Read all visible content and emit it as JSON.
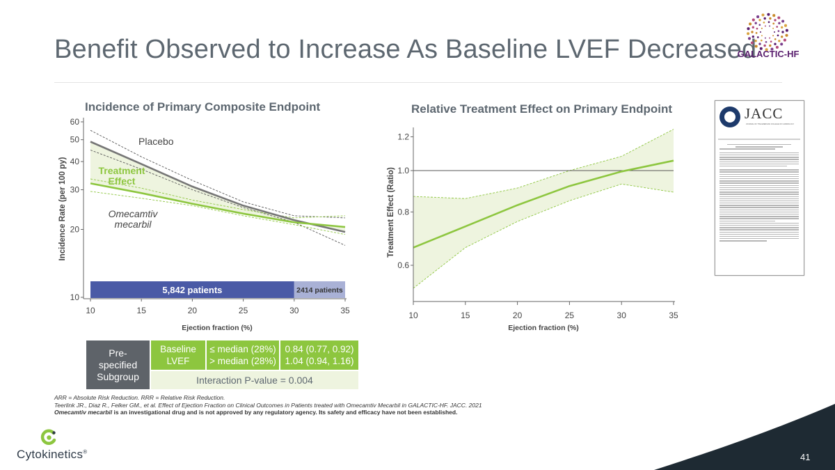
{
  "slide": {
    "title": "Benefit Observed to Increase As Baseline LVEF Decreased",
    "page_number": "41",
    "logo_text": "GALACTIC-HF",
    "company": "Cytokinetics",
    "company_mark": "®",
    "colors": {
      "title": "#5d6770",
      "green": "#8dc63f",
      "navy": "#4a5aa6",
      "gray_line": "#767676",
      "bar_light": "#a9b1d6",
      "dark_cell": "#5e6369",
      "band": "#eef4df"
    }
  },
  "left_chart": {
    "title": "Incidence of Primary Composite Endpoint",
    "ylabel": "Incidence Rate (per 100 py)",
    "xlabel": "Ejection fraction (%)",
    "yticks": [
      "60",
      "50",
      "40",
      "30",
      "20",
      "10"
    ],
    "xticks": [
      "10",
      "15",
      "20",
      "25",
      "30",
      "35"
    ],
    "label_placebo": "Placebo",
    "label_treatment_1": "Treatment",
    "label_treatment_2": "Effect",
    "label_omecamtiv_1": "Omecamtiv",
    "label_omecamtiv_2": "mecarbil",
    "bar_left": "5,842 patients",
    "bar_right": "2414 patients"
  },
  "right_chart": {
    "title": "Relative Treatment Effect on Primary Endpoint",
    "ylabel": "Treatment Effect (Ratio)",
    "xlabel": "Ejection fraction (%)",
    "yticks": [
      "1.2",
      "1.0",
      "0.8",
      "0.6"
    ],
    "xticks": [
      "10",
      "15",
      "20",
      "25",
      "30",
      "35"
    ]
  },
  "chart_data": [
    {
      "type": "line",
      "title": "Incidence of Primary Composite Endpoint",
      "xlabel": "Ejection fraction (%)",
      "ylabel": "Incidence Rate (per 100 py)",
      "y_scale": "log",
      "xlim": [
        10,
        35
      ],
      "ylim": [
        10,
        60
      ],
      "series": [
        {
          "name": "Placebo",
          "x": [
            10,
            15,
            20,
            25,
            30,
            35
          ],
          "y": [
            49,
            39,
            31,
            25.5,
            22,
            19.5
          ]
        },
        {
          "name": "Omecamtiv mecarbil",
          "x": [
            10,
            15,
            20,
            25,
            30,
            35
          ],
          "y": [
            32,
            29,
            26,
            23.5,
            21.5,
            20.5
          ]
        }
      ],
      "bands": [
        {
          "x": [
            10,
            15,
            20,
            25,
            30,
            35
          ],
          "lower": [
            45,
            37,
            30,
            25,
            21.5,
            17
          ],
          "upper": [
            55,
            42,
            33,
            26.5,
            23,
            22.5
          ]
        },
        {
          "x": [
            10,
            15,
            20,
            25,
            30,
            35
          ],
          "lower": [
            29.5,
            27.5,
            25.5,
            23,
            21,
            19
          ],
          "upper": [
            33.5,
            30.5,
            27,
            24.5,
            22.5,
            23
          ]
        }
      ],
      "bars": [
        {
          "label": "5,842 patients",
          "x0": 10,
          "x1": 30
        },
        {
          "label": "2414 patients",
          "x0": 30,
          "x1": 35
        }
      ]
    },
    {
      "type": "line",
      "title": "Relative Treatment Effect on Primary Endpoint",
      "xlabel": "Ejection fraction (%)",
      "ylabel": "Treatment Effect (Ratio)",
      "y_scale": "log",
      "xlim": [
        10,
        35
      ],
      "ylim": [
        0.5,
        1.25
      ],
      "reference_line": 1.0,
      "series": [
        {
          "name": "",
          "x": [
            10,
            15,
            20,
            25,
            30,
            35
          ],
          "y": [
            0.66,
            0.74,
            0.83,
            0.92,
            0.995,
            1.055
          ]
        }
      ],
      "bands": [
        {
          "x": [
            10,
            15,
            20,
            25,
            30,
            35
          ],
          "lower": [
            0.53,
            0.66,
            0.76,
            0.85,
            0.93,
            0.89
          ],
          "upper": [
            0.87,
            0.86,
            0.91,
            1.0,
            1.08,
            1.25
          ]
        }
      ]
    }
  ],
  "subgroup_table": {
    "header": "Pre-specified Subgroup",
    "row_label": "Baseline LVEF",
    "cond_1": "≤ median (28%)",
    "cond_2": "> median (28%)",
    "val_1": "0.84 (0.77, 0.92)",
    "val_2": "1.04 (0.94, 1.16)",
    "interaction": "Interaction P-value = 0.004"
  },
  "footnotes": {
    "line1": "ARR = Absolute Risk Reduction. RRR = Relative Risk Reduction.",
    "line2": "Teerlink JR., Diaz R., Felker GM., et al. Effect of Ejection Fraction on Clinical Outcomes in Patients treated with Omecamtiv Mecarbil in GALACTIC-HF. JACC. 2021",
    "line3_bold": "Omecamtiv mecarbil",
    "line3_rest": " is an investigational drug and is not approved by any regulatory agency. Its safety and efficacy have not been established."
  },
  "journal": {
    "name": "JACC",
    "subtitle": "JOURNAL OF THE AMERICAN COLLEGE OF CARDIOLOGY"
  }
}
